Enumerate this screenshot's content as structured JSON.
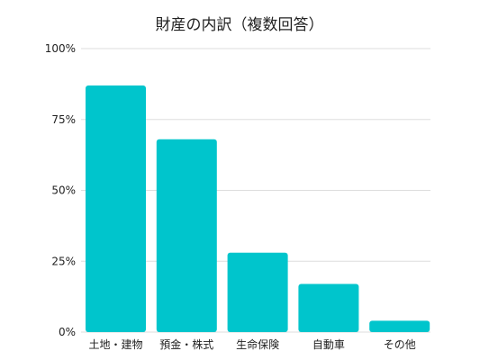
{
  "chart_data": {
    "type": "bar",
    "title": "財産の内訳（複数回答）",
    "xlabel": "",
    "ylabel": "",
    "categories": [
      "土地・建物",
      "預金・株式",
      "生命保険",
      "自動車",
      "その他"
    ],
    "values": [
      87,
      68,
      28,
      17,
      4
    ],
    "value_unit": "%",
    "ylim": [
      0,
      100
    ],
    "yticks": [
      0,
      25,
      50,
      75,
      100
    ],
    "ytick_labels": [
      "0%",
      "25%",
      "50%",
      "75%",
      "100%"
    ],
    "grid": true,
    "legend": "none",
    "colors": {
      "bar": "#00C5CC",
      "grid": "#DDDDDD",
      "text": "#222222"
    }
  }
}
